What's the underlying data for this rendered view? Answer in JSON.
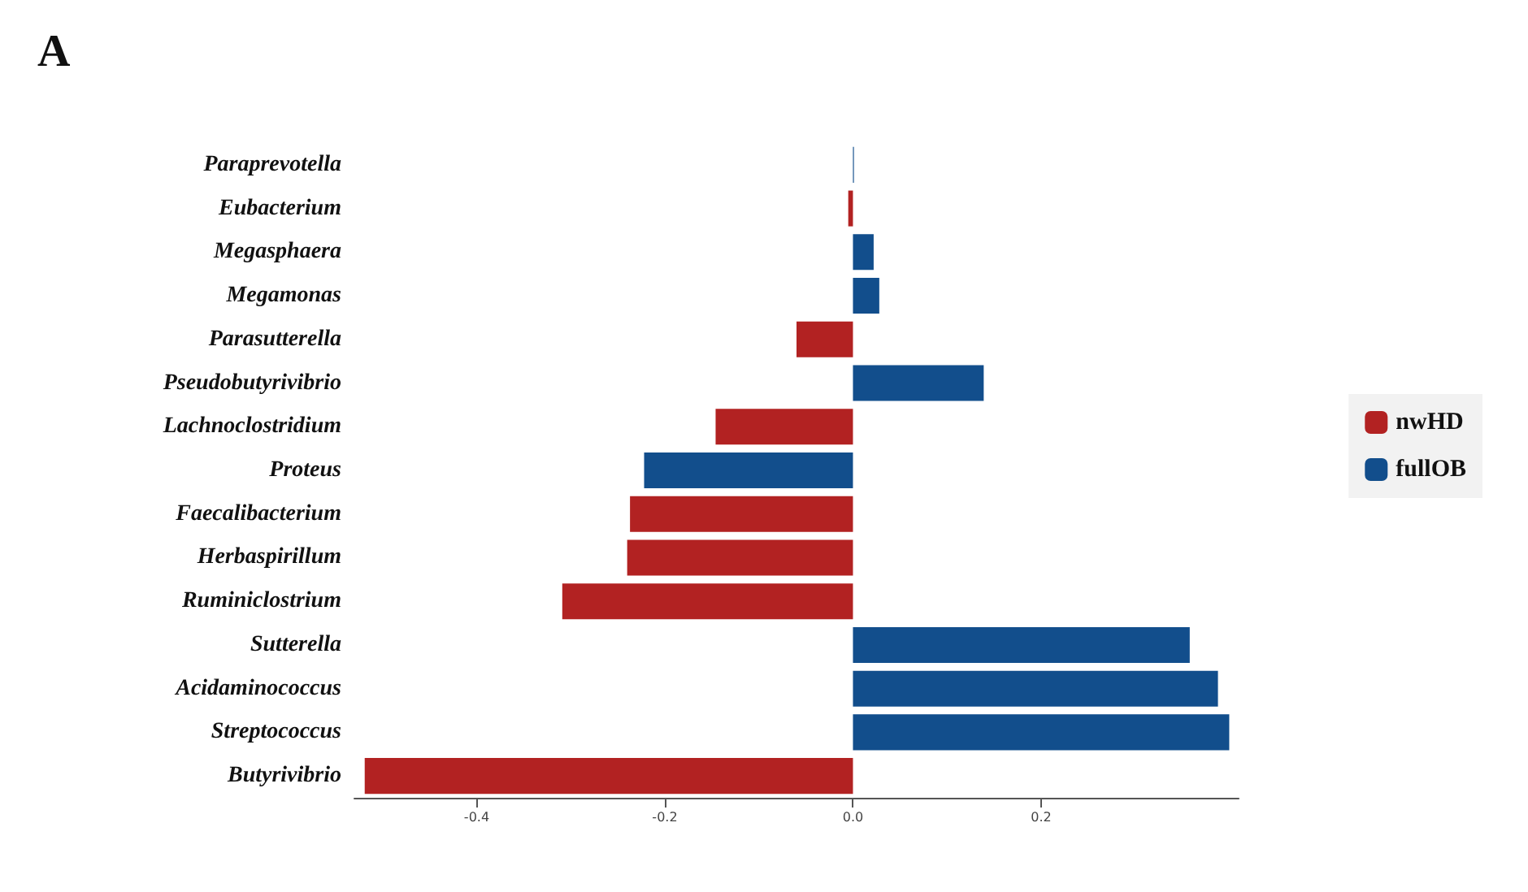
{
  "chart_data": {
    "type": "bar",
    "orientation": "horizontal",
    "title": "A",
    "categories": [
      "Paraprevotella",
      "Eubacterium",
      "Megasphaera",
      "Megamonas",
      "Parasutterella",
      "Pseudobutyrivibrio",
      "Lachnoclostridium",
      "Proteus",
      "Faecalibacterium",
      "Herbaspirillum",
      "Ruminiclostrium",
      "Sutterella",
      "Acidaminococcus",
      "Streptococcus",
      "Butyrivibrio"
    ],
    "series": [
      {
        "name": "nwHD",
        "color": "#b22222",
        "values": [
          null,
          -0.005,
          null,
          null,
          -0.06,
          null,
          -0.146,
          null,
          -0.237,
          -0.24,
          -0.309,
          null,
          null,
          null,
          -0.519
        ]
      },
      {
        "name": "fullOB",
        "color": "#124e8c",
        "values": [
          0.001,
          null,
          0.022,
          0.028,
          null,
          0.139,
          null,
          -0.222,
          null,
          null,
          null,
          0.358,
          0.388,
          0.4,
          null
        ]
      }
    ],
    "xlim": [
      -0.53,
      0.41
    ],
    "xticks": [
      -0.4,
      -0.2,
      {
        "value": 0,
        "label": "0.0"
      },
      0.2
    ],
    "grid": false,
    "legend": "right"
  }
}
